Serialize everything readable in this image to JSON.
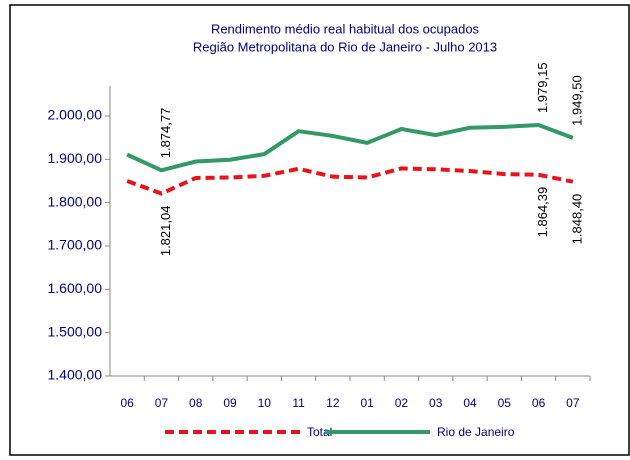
{
  "chart_data": {
    "type": "line",
    "title": "Rendimento médio real habitual dos ocupados",
    "subtitle": "Região Metropolitana do Rio de Janeiro - Julho 2013",
    "categories": [
      "06",
      "07",
      "08",
      "09",
      "10",
      "11",
      "12",
      "01",
      "02",
      "03",
      "04",
      "05",
      "06",
      "07"
    ],
    "series": [
      {
        "name": "Total",
        "color": "#e8141a",
        "dash": true,
        "values": [
          1850,
          1821.04,
          1857,
          1858,
          1862,
          1878,
          1860,
          1858,
          1879,
          1877,
          1873,
          1866,
          1864.39,
          1848.4
        ],
        "value_labels": [
          null,
          "1.821,04",
          null,
          null,
          null,
          null,
          null,
          null,
          null,
          null,
          null,
          null,
          "1.864,39",
          "1.848,40"
        ]
      },
      {
        "name": "Rio de Janeiro",
        "color": "#339966",
        "dash": false,
        "values": [
          1911,
          1874.77,
          1895,
          1899,
          1912,
          1965,
          1954,
          1938,
          1970,
          1956,
          1973,
          1975,
          1979.15,
          1949.5
        ],
        "value_labels": [
          null,
          "1.874,77",
          null,
          null,
          null,
          null,
          null,
          null,
          null,
          null,
          null,
          null,
          "1.979,15",
          "1.949,50"
        ]
      }
    ],
    "ylim": [
      1400,
      2000
    ],
    "yticks": [
      {
        "value": 1400,
        "label": "1.400,00"
      },
      {
        "value": 1500,
        "label": "1.500,00"
      },
      {
        "value": 1600,
        "label": "1.600,00"
      },
      {
        "value": 1700,
        "label": "1.700,00"
      },
      {
        "value": 1800,
        "label": "1.800,00"
      },
      {
        "value": 1900,
        "label": "1.900,00"
      },
      {
        "value": 2000,
        "label": "2.000,00"
      }
    ],
    "legend": "bottom"
  }
}
